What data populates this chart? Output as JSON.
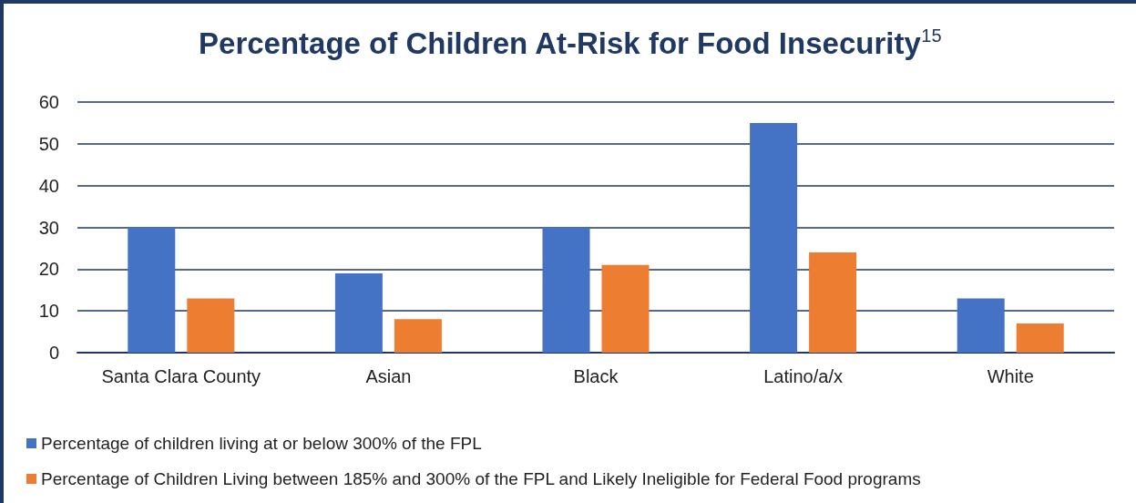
{
  "chart_data": {
    "type": "bar",
    "title": "Percentage of Children At-Risk for Food Insecurity$^{15}$",
    "categories": [
      "Santa Clara County",
      "Asian",
      "Black",
      "Latino/a/x",
      "White"
    ],
    "series": [
      {
        "name": "Percentage of children living at or below 300% of the FPL",
        "color": "#4472c4",
        "values": [
          30,
          19,
          30,
          55,
          13
        ]
      },
      {
        "name": "Percentage of Children Living between 185% and 300% of the FPL and Likely Ineligible for Federal Food programs",
        "color": "#ed7d31",
        "values": [
          13,
          8,
          21,
          24,
          7
        ]
      }
    ],
    "ylim": [
      0,
      60
    ],
    "yticks": [
      0,
      10,
      20,
      30,
      40,
      50,
      60
    ],
    "grid": "y",
    "legend": "bottom left"
  }
}
